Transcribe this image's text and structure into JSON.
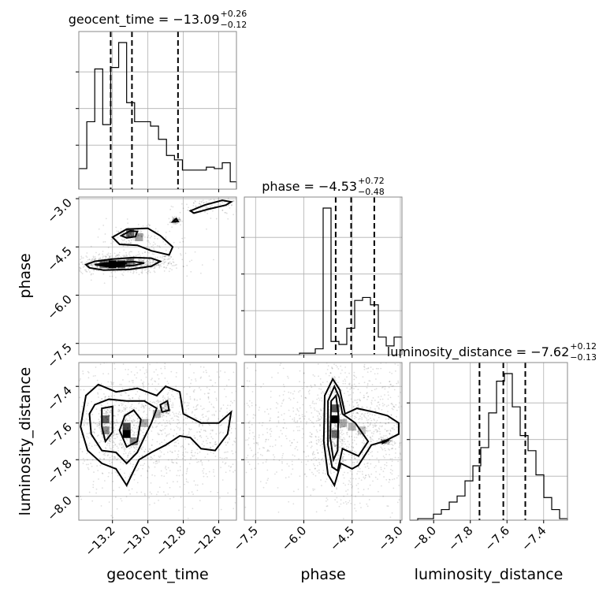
{
  "chart_data": {
    "type": "corner",
    "parameters": [
      "geocent_time",
      "phase",
      "luminosity_distance"
    ],
    "axis_labels": {
      "geocent_time": "geocent_time",
      "phase": "phase",
      "luminosity_distance": "luminosity_distance"
    },
    "ranges": {
      "geocent_time": [
        -13.39,
        -12.5
      ],
      "phase": [
        -7.85,
        -2.95
      ],
      "luminosity_distance": [
        -8.13,
        -7.27
      ]
    },
    "tick_labels": {
      "geocent_time": [
        "−13.2",
        "−13.0",
        "−12.8",
        "−12.6"
      ],
      "phase": [
        "−7.5",
        "−6.0",
        "−4.5",
        "−3.0"
      ],
      "luminosity_distance": [
        "−8.0",
        "−7.8",
        "−7.6",
        "−7.4"
      ]
    },
    "ticks": {
      "geocent_time": [
        -13.2,
        -13.0,
        -12.8,
        -12.6
      ],
      "phase": [
        -7.5,
        -6.0,
        -4.5,
        -3.0
      ],
      "luminosity_distance": [
        -8.0,
        -7.8,
        -7.6,
        -7.4
      ]
    },
    "titles": {
      "geocent_time": {
        "main": "geocent_time = −13.09",
        "sup": "+0.26",
        "sub": "−0.12"
      },
      "phase": {
        "main": "phase = −4.53",
        "sup": "+0.72",
        "sub": "−0.48"
      },
      "luminosity_distance": {
        "main": "luminosity_distance = −7.62",
        "sup": "+0.12",
        "sub": "−0.13"
      }
    },
    "histograms": {
      "geocent_time": {
        "bin_edges": [
          -13.39,
          -13.345,
          -13.3,
          -13.255,
          -13.21,
          -13.165,
          -13.12,
          -13.075,
          -13.03,
          -12.985,
          -12.94,
          -12.895,
          -12.85,
          -12.805,
          -12.76,
          -12.715,
          -12.67,
          -12.625,
          -12.58,
          -12.535,
          -12.5
        ],
        "counts": [
          0.14,
          0.46,
          0.82,
          0.44,
          0.83,
          1.0,
          0.59,
          0.46,
          0.46,
          0.43,
          0.34,
          0.23,
          0.2,
          0.13,
          0.13,
          0.13,
          0.15,
          0.14,
          0.18,
          0.05
        ]
      },
      "phase": {
        "bin_edges": [
          -7.85,
          -7.605,
          -7.36,
          -7.115,
          -6.87,
          -6.625,
          -6.38,
          -6.135,
          -5.89,
          -5.645,
          -5.4,
          -5.155,
          -4.91,
          -4.665,
          -4.42,
          -4.175,
          -3.93,
          -3.685,
          -3.44,
          -3.195,
          -2.95
        ],
        "counts": [
          0.0,
          0.0,
          0.0,
          0.0,
          0.0,
          0.0,
          0.0,
          0.01,
          0.01,
          0.04,
          1.0,
          0.09,
          0.07,
          0.18,
          0.37,
          0.39,
          0.34,
          0.12,
          0.06,
          0.12
        ]
      },
      "luminosity_distance": {
        "bin_edges": [
          -8.13,
          -8.087,
          -8.044,
          -8.001,
          -7.958,
          -7.915,
          -7.872,
          -7.829,
          -7.786,
          -7.743,
          -7.7,
          -7.657,
          -7.614,
          -7.571,
          -7.528,
          -7.485,
          -7.442,
          -7.399,
          -7.356,
          -7.313,
          -7.27
        ],
        "counts": [
          0.0,
          0.01,
          0.01,
          0.04,
          0.07,
          0.12,
          0.16,
          0.26,
          0.36,
          0.48,
          0.71,
          0.92,
          0.97,
          0.75,
          0.56,
          0.46,
          0.3,
          0.15,
          0.07,
          0.01
        ]
      }
    },
    "quantiles": {
      "geocent_time": [
        -13.21,
        -13.09,
        -12.83
      ],
      "phase": [
        -5.01,
        -4.53,
        -3.81
      ],
      "luminosity_distance": [
        -7.75,
        -7.62,
        -7.5
      ]
    },
    "pairs": {
      "phase_vs_geocent_time": {
        "x": "geocent_time",
        "y": "phase",
        "contours": [
          [
            [
              -13.35,
              -5.05
            ],
            [
              -13.3,
              -4.95
            ],
            [
              -13.2,
              -4.88
            ],
            [
              -13.08,
              -4.83
            ],
            [
              -12.98,
              -4.85
            ],
            [
              -12.93,
              -4.95
            ],
            [
              -12.98,
              -5.1
            ],
            [
              -13.1,
              -5.2
            ],
            [
              -13.25,
              -5.22
            ],
            [
              -13.33,
              -5.15
            ]
          ],
          [
            [
              -13.3,
              -5.05
            ],
            [
              -13.2,
              -4.98
            ],
            [
              -13.08,
              -4.96
            ],
            [
              -13.02,
              -5.0
            ],
            [
              -13.08,
              -5.08
            ],
            [
              -13.22,
              -5.12
            ]
          ],
          [
            [
              -13.28,
              -5.05
            ],
            [
              -13.2,
              -5.01
            ],
            [
              -13.12,
              -5.02
            ],
            [
              -13.16,
              -5.06
            ],
            [
              -13.24,
              -5.08
            ]
          ],
          [
            [
              -13.2,
              -4.2
            ],
            [
              -13.12,
              -3.95
            ],
            [
              -13.0,
              -3.92
            ],
            [
              -12.93,
              -4.15
            ],
            [
              -12.86,
              -4.5
            ],
            [
              -12.88,
              -4.75
            ],
            [
              -12.98,
              -4.62
            ],
            [
              -13.06,
              -4.45
            ],
            [
              -13.16,
              -4.42
            ]
          ],
          [
            [
              -13.15,
              -4.15
            ],
            [
              -13.1,
              -4.0
            ],
            [
              -13.06,
              -4.02
            ],
            [
              -13.07,
              -4.18
            ],
            [
              -13.12,
              -4.22
            ]
          ],
          [
            [
              -12.74,
              -3.45
            ],
            [
              -12.66,
              -3.33
            ],
            [
              -12.56,
              -3.2
            ],
            [
              -12.53,
              -3.1
            ],
            [
              -12.58,
              -3.05
            ],
            [
              -12.68,
              -3.2
            ],
            [
              -12.76,
              -3.38
            ]
          ],
          [
            [
              -12.86,
              -3.72
            ],
            [
              -12.84,
              -3.62
            ],
            [
              -12.83,
              -3.71
            ]
          ]
        ],
        "hist2d": [
          [
            -13.2,
            -5.04,
            1.0
          ],
          [
            -13.15,
            -5.04,
            0.65
          ],
          [
            -13.1,
            -4.95,
            0.3
          ],
          [
            -13.1,
            -4.08,
            0.5
          ],
          [
            -13.05,
            -4.2,
            0.25
          ],
          [
            -13.25,
            -5.04,
            0.45
          ]
        ]
      },
      "luminosity_distance_vs_geocent_time": {
        "x": "geocent_time",
        "y": "luminosity_distance",
        "contours": [
          [
            [
              -13.35,
              -7.45
            ],
            [
              -13.28,
              -7.39
            ],
            [
              -13.18,
              -7.43
            ],
            [
              -13.06,
              -7.41
            ],
            [
              -12.95,
              -7.45
            ],
            [
              -12.9,
              -7.4
            ],
            [
              -12.82,
              -7.43
            ],
            [
              -12.8,
              -7.55
            ],
            [
              -12.7,
              -7.6
            ],
            [
              -12.6,
              -7.6
            ],
            [
              -12.53,
              -7.54
            ],
            [
              -12.55,
              -7.66
            ],
            [
              -12.62,
              -7.75
            ],
            [
              -12.7,
              -7.74
            ],
            [
              -12.76,
              -7.68
            ],
            [
              -12.82,
              -7.67
            ],
            [
              -12.9,
              -7.72
            ],
            [
              -12.98,
              -7.76
            ],
            [
              -13.05,
              -7.8
            ],
            [
              -13.12,
              -7.94
            ],
            [
              -13.18,
              -7.85
            ],
            [
              -13.26,
              -7.82
            ],
            [
              -13.34,
              -7.75
            ],
            [
              -13.38,
              -7.62
            ]
          ],
          [
            [
              -13.3,
              -7.5
            ],
            [
              -13.22,
              -7.47
            ],
            [
              -13.12,
              -7.48
            ],
            [
              -13.02,
              -7.48
            ],
            [
              -12.95,
              -7.52
            ],
            [
              -12.98,
              -7.6
            ],
            [
              -13.02,
              -7.68
            ],
            [
              -13.06,
              -7.76
            ],
            [
              -13.12,
              -7.82
            ],
            [
              -13.18,
              -7.76
            ],
            [
              -13.26,
              -7.75
            ],
            [
              -13.32,
              -7.66
            ],
            [
              -13.33,
              -7.55
            ]
          ],
          [
            [
              -13.26,
              -7.52
            ],
            [
              -13.2,
              -7.51
            ],
            [
              -13.2,
              -7.65
            ],
            [
              -13.24,
              -7.7
            ],
            [
              -13.26,
              -7.62
            ]
          ],
          [
            [
              -13.13,
              -7.56
            ],
            [
              -13.08,
              -7.53
            ],
            [
              -13.04,
              -7.58
            ],
            [
              -13.06,
              -7.7
            ],
            [
              -13.12,
              -7.73
            ],
            [
              -13.16,
              -7.64
            ]
          ],
          [
            [
              -12.93,
              -7.5
            ],
            [
              -12.89,
              -7.48
            ],
            [
              -12.88,
              -7.53
            ],
            [
              -12.92,
              -7.54
            ]
          ]
        ],
        "hist2d": [
          [
            -13.24,
            -7.58,
            0.55
          ],
          [
            -13.12,
            -7.62,
            0.7
          ],
          [
            -13.12,
            -7.66,
            1.0
          ],
          [
            -13.24,
            -7.64,
            0.35
          ],
          [
            -13.08,
            -7.7,
            0.35
          ],
          [
            -13.02,
            -7.6,
            0.2
          ],
          [
            -12.95,
            -7.55,
            0.15
          ]
        ]
      },
      "luminosity_distance_vs_phase": {
        "x": "phase",
        "y": "luminosity_distance",
        "contours": [
          [
            [
              -5.35,
              -7.45
            ],
            [
              -5.1,
              -7.36
            ],
            [
              -4.88,
              -7.42
            ],
            [
              -4.72,
              -7.55
            ],
            [
              -4.35,
              -7.52
            ],
            [
              -3.82,
              -7.54
            ],
            [
              -3.4,
              -7.56
            ],
            [
              -3.05,
              -7.6
            ],
            [
              -3.05,
              -7.66
            ],
            [
              -3.5,
              -7.7
            ],
            [
              -3.9,
              -7.72
            ],
            [
              -4.3,
              -7.83
            ],
            [
              -4.5,
              -7.85
            ],
            [
              -4.85,
              -7.82
            ],
            [
              -5.05,
              -7.94
            ],
            [
              -5.25,
              -7.88
            ],
            [
              -5.38,
              -7.7
            ]
          ],
          [
            [
              -5.25,
              -7.48
            ],
            [
              -5.05,
              -7.4
            ],
            [
              -4.9,
              -7.46
            ],
            [
              -4.8,
              -7.55
            ],
            [
              -4.4,
              -7.6
            ],
            [
              -4.0,
              -7.7
            ],
            [
              -4.3,
              -7.78
            ],
            [
              -4.8,
              -7.74
            ],
            [
              -4.95,
              -7.86
            ],
            [
              -5.12,
              -7.84
            ],
            [
              -5.25,
              -7.72
            ]
          ],
          [
            [
              -5.15,
              -7.48
            ],
            [
              -5.0,
              -7.45
            ],
            [
              -4.93,
              -7.55
            ],
            [
              -4.95,
              -7.75
            ],
            [
              -5.08,
              -7.8
            ],
            [
              -5.18,
              -7.68
            ]
          ],
          [
            [
              -3.55,
              -7.7
            ],
            [
              -3.35,
              -7.69
            ],
            [
              -3.55,
              -7.71
            ]
          ]
        ],
        "hist2d": [
          [
            -5.02,
            -7.58,
            1.0
          ],
          [
            -5.02,
            -7.52,
            0.6
          ],
          [
            -5.02,
            -7.66,
            0.5
          ],
          [
            -4.78,
            -7.6,
            0.2
          ],
          [
            -4.5,
            -7.62,
            0.15
          ],
          [
            -4.2,
            -7.64,
            0.1
          ]
        ]
      }
    }
  }
}
